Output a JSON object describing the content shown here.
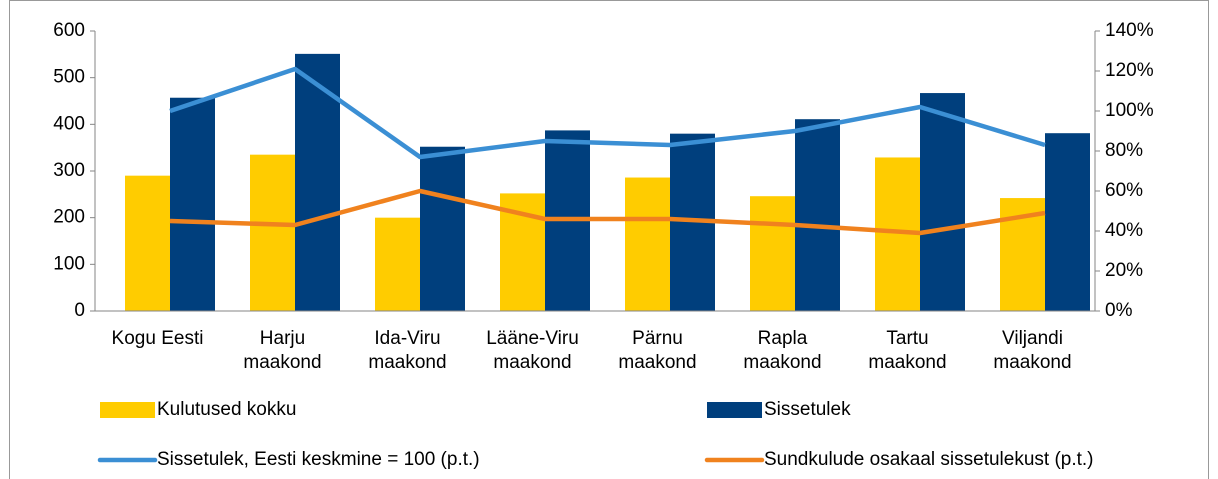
{
  "chart_data": {
    "type": "bar",
    "categories": [
      "Kogu Eesti",
      "Harju maakond",
      "Ida-Viru maakond",
      "Lääne-Viru maakond",
      "Pärnu maakond",
      "Rapla maakond",
      "Tartu maakond",
      "Viljandi maakond"
    ],
    "series": [
      {
        "name": "Kulutused kokku",
        "type": "bar",
        "color": "#ffcc00",
        "values": [
          290,
          335,
          200,
          252,
          286,
          246,
          329,
          242
        ]
      },
      {
        "name": "Sissetulek",
        "type": "bar",
        "color": "#003f7d",
        "values": [
          457,
          551,
          352,
          387,
          380,
          411,
          467,
          381
        ]
      },
      {
        "name": "Sissetulek, Eesti keskmine = 100 (p.t.)",
        "type": "line",
        "axis": "y2",
        "color": "#3b8fd4",
        "values": [
          100,
          121,
          77,
          85,
          83,
          90,
          102,
          83
        ]
      },
      {
        "name": "Sundkulude osakaal sissetulekust (p.t.)",
        "type": "line",
        "axis": "y2",
        "color": "#f0821e",
        "values": [
          45,
          43,
          60,
          46,
          46,
          43,
          39,
          49
        ]
      }
    ],
    "ylim": [
      0,
      600
    ],
    "yticks": [
      0,
      100,
      200,
      300,
      400,
      500,
      600
    ],
    "y2lim": [
      0,
      140
    ],
    "y2ticks": [
      {
        "value": 0,
        "label": "0%"
      },
      {
        "value": 20,
        "label": "20%"
      },
      {
        "value": 40,
        "label": "40%"
      },
      {
        "value": 60,
        "label": "60%"
      },
      {
        "value": 80,
        "label": "80%"
      },
      {
        "value": 100,
        "label": "100%"
      },
      {
        "value": 120,
        "label": "120%"
      },
      {
        "value": 140,
        "label": "140%"
      }
    ]
  }
}
